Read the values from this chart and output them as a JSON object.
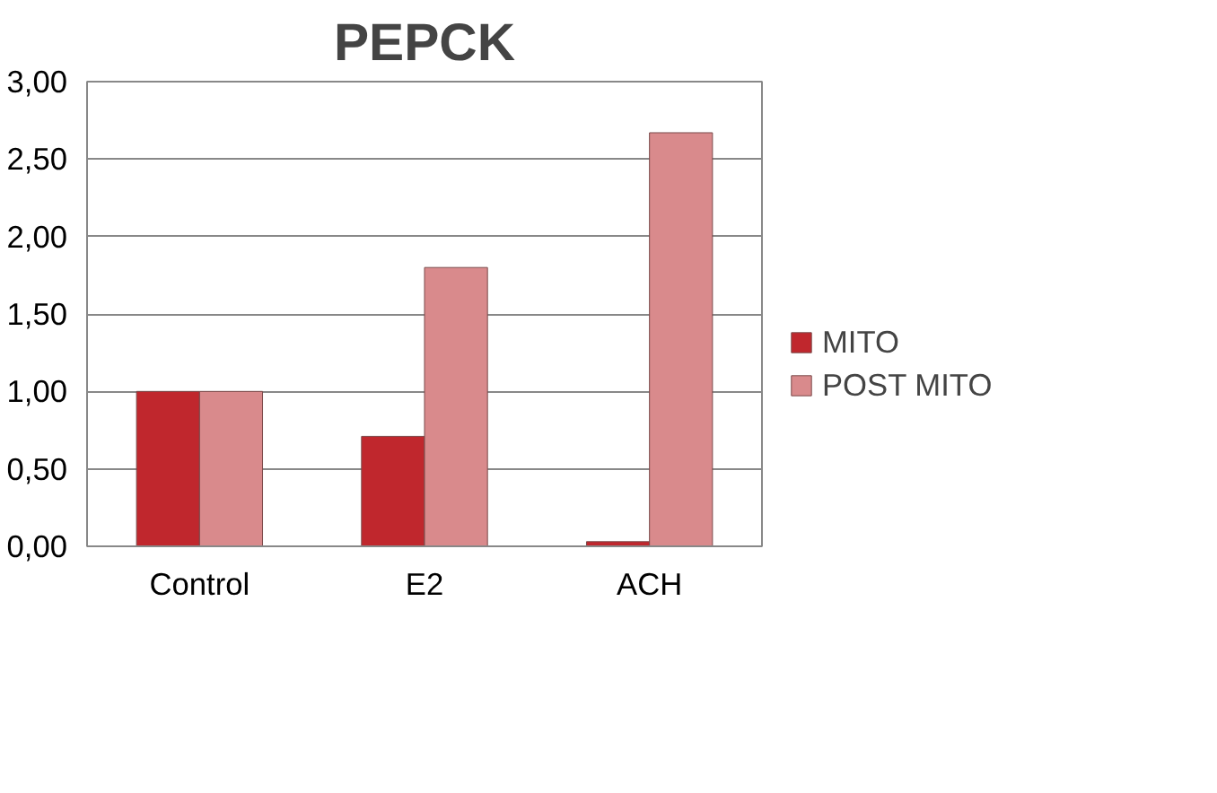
{
  "chart_data": {
    "type": "bar",
    "title": "PEPCK",
    "categories": [
      "Control",
      "E2",
      "ACH"
    ],
    "series": [
      {
        "name": "MITO",
        "color": "#c0272d",
        "values": [
          1.0,
          0.71,
          0.03
        ]
      },
      {
        "name": "POST MITO",
        "color": "#d98a8c",
        "values": [
          1.0,
          1.8,
          2.67
        ]
      }
    ],
    "ylim": [
      0,
      3
    ],
    "yticks": [
      {
        "value": 0,
        "label": "0,00"
      },
      {
        "value": 0.5,
        "label": "0,50"
      },
      {
        "value": 1,
        "label": "1,00"
      },
      {
        "value": 1.5,
        "label": "1,50"
      },
      {
        "value": 2,
        "label": "2,00"
      },
      {
        "value": 2.5,
        "label": "2,50"
      },
      {
        "value": 3,
        "label": "3,00"
      }
    ],
    "grid": "y",
    "legend": "right"
  }
}
